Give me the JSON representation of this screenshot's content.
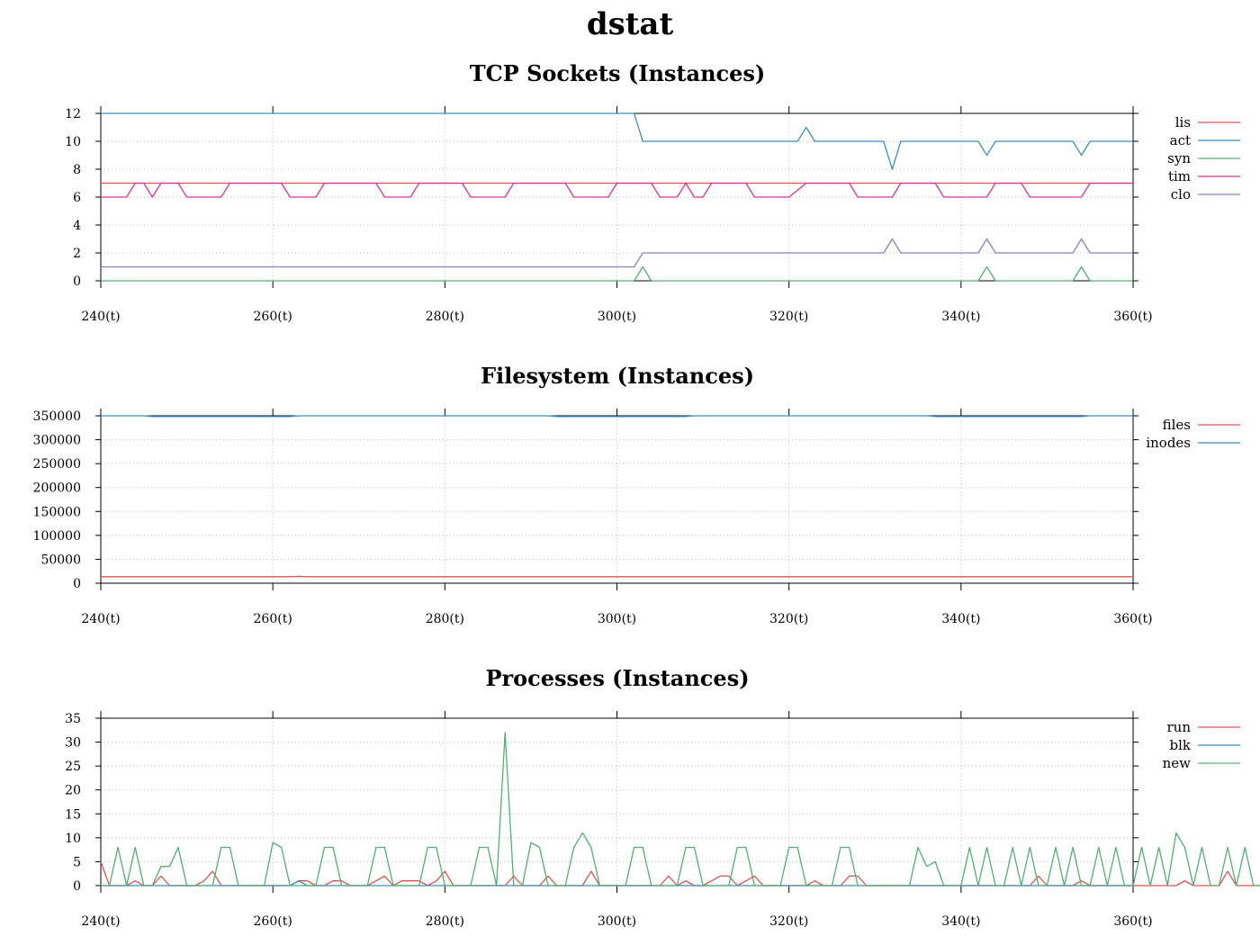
{
  "page_title": "dstat",
  "colors": {
    "red": "#e05252",
    "blue": "#3d8fbf",
    "green": "#4fb06f",
    "magenta": "#d6349a",
    "purple": "#8b7fc4",
    "grid": "#bbbbbb"
  },
  "chart_data": [
    {
      "type": "line",
      "title": "TCP Sockets (Instances)",
      "xlabel": "",
      "ylabel": "",
      "xlim": [
        240,
        360
      ],
      "ylim": [
        0,
        12
      ],
      "y_ticks": [
        "0",
        "2",
        "4",
        "6",
        "8",
        "10",
        "12"
      ],
      "x_ticks": [
        "240(t)",
        "260(t)",
        "280(t)",
        "300(t)",
        "320(t)",
        "340(t)",
        "360(t)"
      ],
      "x_tick_values": [
        240,
        260,
        280,
        300,
        320,
        340,
        360
      ],
      "grid": true,
      "legend": "right",
      "series": [
        {
          "name": "lis",
          "color": "red",
          "points": [
            [
              240,
              7
            ],
            [
              360,
              7
            ]
          ]
        },
        {
          "name": "act",
          "color": "blue",
          "points": [
            [
              240,
              12
            ],
            [
              302,
              12
            ],
            [
              303,
              10
            ],
            [
              321,
              10
            ],
            [
              322,
              11
            ],
            [
              323,
              10
            ],
            [
              331,
              10
            ],
            [
              332,
              8
            ],
            [
              333,
              10
            ],
            [
              342,
              10
            ],
            [
              343,
              9
            ],
            [
              344,
              10
            ],
            [
              353,
              10
            ],
            [
              354,
              9
            ],
            [
              355,
              10
            ],
            [
              360,
              10
            ]
          ]
        },
        {
          "name": "syn",
          "color": "green",
          "points": [
            [
              240,
              0
            ],
            [
              302,
              0
            ],
            [
              303,
              1
            ],
            [
              304,
              0
            ],
            [
              342,
              0
            ],
            [
              343,
              1
            ],
            [
              344,
              0
            ],
            [
              353,
              0
            ],
            [
              354,
              1
            ],
            [
              355,
              0
            ],
            [
              360,
              0
            ]
          ]
        },
        {
          "name": "tim",
          "color": "magenta",
          "points": [
            [
              240,
              6
            ],
            [
              243,
              6
            ],
            [
              244,
              7
            ],
            [
              245,
              7
            ],
            [
              246,
              6
            ],
            [
              247,
              7
            ],
            [
              249,
              7
            ],
            [
              250,
              6
            ],
            [
              254,
              6
            ],
            [
              255,
              7
            ],
            [
              261,
              7
            ],
            [
              262,
              6
            ],
            [
              265,
              6
            ],
            [
              266,
              7
            ],
            [
              272,
              7
            ],
            [
              273,
              6
            ],
            [
              276,
              6
            ],
            [
              277,
              7
            ],
            [
              282,
              7
            ],
            [
              283,
              6
            ],
            [
              287,
              6
            ],
            [
              288,
              7
            ],
            [
              294,
              7
            ],
            [
              295,
              6
            ],
            [
              299,
              6
            ],
            [
              300,
              7
            ],
            [
              304,
              7
            ],
            [
              305,
              6
            ],
            [
              307,
              6
            ],
            [
              308,
              7
            ],
            [
              309,
              6
            ],
            [
              310,
              6
            ],
            [
              311,
              7
            ],
            [
              315,
              7
            ],
            [
              316,
              6
            ],
            [
              320,
              6
            ],
            [
              322,
              7
            ],
            [
              327,
              7
            ],
            [
              328,
              6
            ],
            [
              332,
              6
            ],
            [
              333,
              7
            ],
            [
              337,
              7
            ],
            [
              338,
              6
            ],
            [
              343,
              6
            ],
            [
              344,
              7
            ],
            [
              347,
              7
            ],
            [
              348,
              6
            ],
            [
              354,
              6
            ],
            [
              355,
              7
            ],
            [
              360,
              7
            ]
          ]
        },
        {
          "name": "clo",
          "color": "purple",
          "points": [
            [
              240,
              1
            ],
            [
              302,
              1
            ],
            [
              303,
              2
            ],
            [
              331,
              2
            ],
            [
              332,
              3
            ],
            [
              333,
              2
            ],
            [
              342,
              2
            ],
            [
              343,
              3
            ],
            [
              344,
              2
            ],
            [
              353,
              2
            ],
            [
              354,
              3
            ],
            [
              355,
              2
            ],
            [
              360,
              2
            ]
          ]
        }
      ]
    },
    {
      "type": "line",
      "title": "Filesystem (Instances)",
      "xlabel": "",
      "ylabel": "",
      "xlim": [
        240,
        360
      ],
      "ylim": [
        0,
        350000
      ],
      "y_ticks": [
        "0",
        "50000",
        "100000",
        "150000",
        "200000",
        "250000",
        "300000",
        "350000"
      ],
      "x_ticks": [
        "240(t)",
        "260(t)",
        "280(t)",
        "300(t)",
        "320(t)",
        "340(t)",
        "360(t)"
      ],
      "x_tick_values": [
        240,
        260,
        280,
        300,
        320,
        340,
        360
      ],
      "grid": true,
      "legend": "right",
      "series": [
        {
          "name": "files",
          "color": "red",
          "points": [
            [
              240,
              13500
            ],
            [
              262,
              13500
            ],
            [
              263,
              14300
            ],
            [
              264,
              13500
            ],
            [
              360,
              13500
            ]
          ]
        },
        {
          "name": "inodes",
          "color": "blue",
          "points": [
            [
              240,
              350000
            ],
            [
              245,
              350000
            ],
            [
              246,
              348500
            ],
            [
              262,
              348500
            ],
            [
              263,
              350000
            ],
            [
              292,
              350000
            ],
            [
              293,
              348500
            ],
            [
              308,
              348500
            ],
            [
              309,
              350000
            ],
            [
              336,
              350000
            ],
            [
              337,
              348500
            ],
            [
              354,
              348500
            ],
            [
              355,
              350000
            ],
            [
              360,
              350000
            ]
          ]
        }
      ]
    },
    {
      "type": "line",
      "title": "Processes (Instances)",
      "xlabel": "",
      "ylabel": "",
      "xlim": [
        240,
        360
      ],
      "ylim": [
        0,
        35
      ],
      "y_ticks": [
        "0",
        "5",
        "10",
        "15",
        "20",
        "25",
        "30",
        "35"
      ],
      "x_ticks": [
        "240(t)",
        "260(t)",
        "280(t)",
        "300(t)",
        "320(t)",
        "340(t)",
        "360(t)"
      ],
      "x_tick_values": [
        240,
        260,
        280,
        300,
        320,
        340,
        360
      ],
      "grid": true,
      "legend": "right",
      "series": [
        {
          "name": "run",
          "color": "red",
          "x_start": 240,
          "values": [
            5,
            0,
            0,
            0,
            1,
            0,
            0,
            2,
            0,
            0,
            0,
            0,
            1,
            3,
            0,
            0,
            0,
            0,
            0,
            0,
            0,
            0,
            0,
            1,
            1,
            0,
            0,
            1,
            1,
            0,
            0,
            0,
            1,
            2,
            0,
            1,
            1,
            1,
            0,
            1,
            3,
            0,
            0,
            0,
            0,
            0,
            0,
            0,
            2,
            0,
            0,
            0,
            2,
            0,
            0,
            0,
            0,
            3,
            0,
            0,
            0,
            0,
            0,
            0,
            0,
            0,
            2,
            0,
            1,
            0,
            0,
            1,
            2,
            2,
            0,
            1,
            2,
            0,
            0,
            0,
            0,
            0,
            0,
            1,
            0,
            0,
            0,
            2,
            2,
            0,
            0,
            0,
            0,
            0,
            0,
            0,
            0,
            0,
            0,
            0,
            0,
            0,
            0,
            0,
            0,
            0,
            0,
            0,
            0,
            2,
            0,
            0,
            0,
            0,
            1,
            0,
            0,
            0,
            0,
            0,
            0,
            0,
            0,
            0,
            0,
            0,
            1,
            0,
            0,
            0,
            0,
            3,
            0,
            0,
            0,
            0,
            2
          ]
        },
        {
          "name": "blk",
          "color": "blue",
          "x_start": 240,
          "values": [
            0,
            0,
            0,
            0,
            0,
            0,
            0,
            0,
            0,
            0,
            0,
            0,
            0,
            0,
            0,
            0,
            0,
            0,
            0,
            0,
            0,
            0,
            0,
            1,
            0,
            0,
            0,
            0,
            0,
            0,
            0,
            0,
            0,
            0,
            0,
            0,
            0,
            0,
            0,
            0,
            0,
            0,
            0,
            0,
            0,
            0,
            0,
            0,
            0,
            0,
            0,
            0,
            0,
            0,
            0,
            0,
            0,
            0,
            0,
            0,
            0,
            0,
            0,
            0,
            0,
            0,
            0,
            0,
            0,
            0,
            0,
            0,
            0,
            0,
            0,
            0,
            0,
            0,
            0,
            0,
            0,
            0,
            0,
            0,
            0,
            0,
            0,
            0,
            0,
            0,
            0,
            0,
            0,
            0,
            0,
            0,
            0,
            0,
            0,
            0,
            0,
            0,
            0,
            0,
            0,
            0,
            0,
            0,
            0,
            0,
            0,
            0,
            0,
            0,
            0,
            0,
            0,
            0,
            0,
            0,
            0
          ]
        },
        {
          "name": "new",
          "color": "green",
          "x_start": 240,
          "values": [
            0,
            0,
            8,
            0,
            8,
            0,
            0,
            4,
            4,
            8,
            0,
            0,
            0,
            0,
            8,
            8,
            0,
            0,
            0,
            0,
            9,
            8,
            0,
            0,
            0,
            0,
            8,
            8,
            0,
            0,
            0,
            0,
            8,
            8,
            0,
            0,
            0,
            0,
            8,
            8,
            0,
            0,
            0,
            0,
            8,
            8,
            0,
            32,
            0,
            0,
            9,
            8,
            0,
            0,
            0,
            8,
            11,
            8,
            0,
            0,
            0,
            0,
            8,
            8,
            0,
            0,
            0,
            0,
            8,
            8,
            0,
            0,
            0,
            0,
            8,
            8,
            0,
            0,
            0,
            0,
            8,
            8,
            0,
            0,
            0,
            0,
            8,
            8,
            0,
            0,
            0,
            0,
            0,
            0,
            0,
            8,
            4,
            5,
            0,
            0,
            0,
            8,
            0,
            8,
            0,
            0,
            8,
            0,
            8,
            0,
            0,
            8,
            0,
            8,
            0,
            0,
            8,
            0,
            8,
            0,
            0,
            8,
            0,
            8,
            0,
            11,
            8,
            0,
            8,
            0,
            0,
            8,
            0,
            8,
            0,
            0,
            8,
            0,
            8
          ]
        }
      ]
    }
  ]
}
